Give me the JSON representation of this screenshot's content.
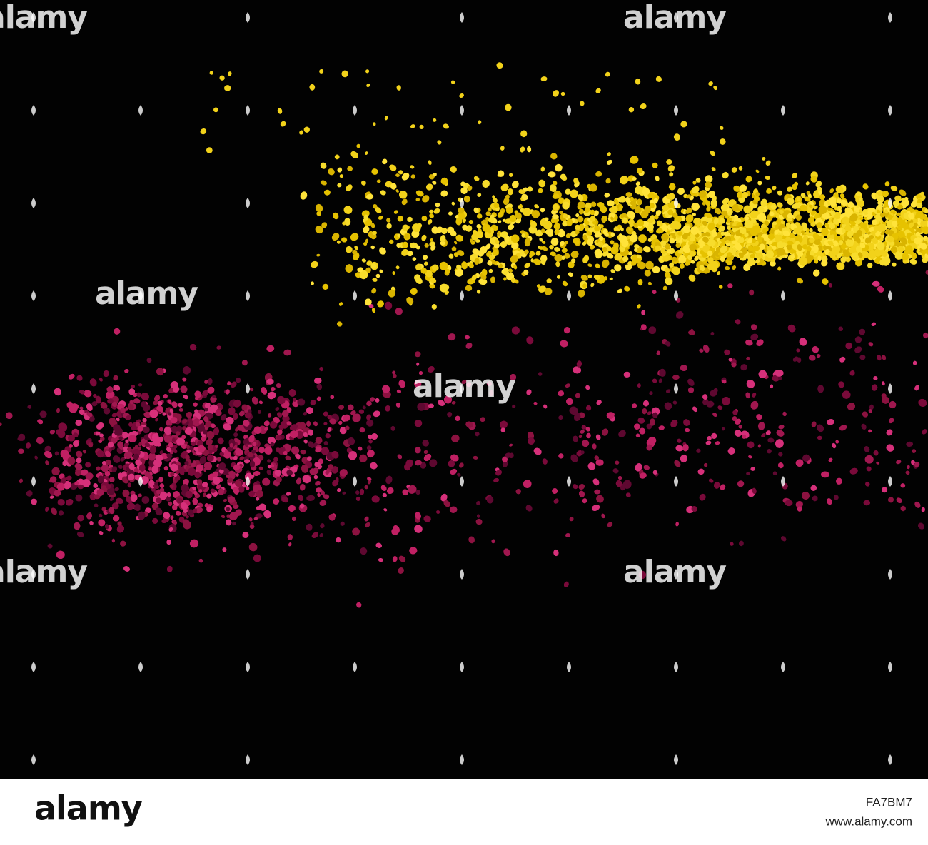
{
  "watermark": "alamy",
  "footer": {
    "logo": "alamy",
    "image_id": "FA7BM7",
    "url": "www.alamy.com"
  }
}
